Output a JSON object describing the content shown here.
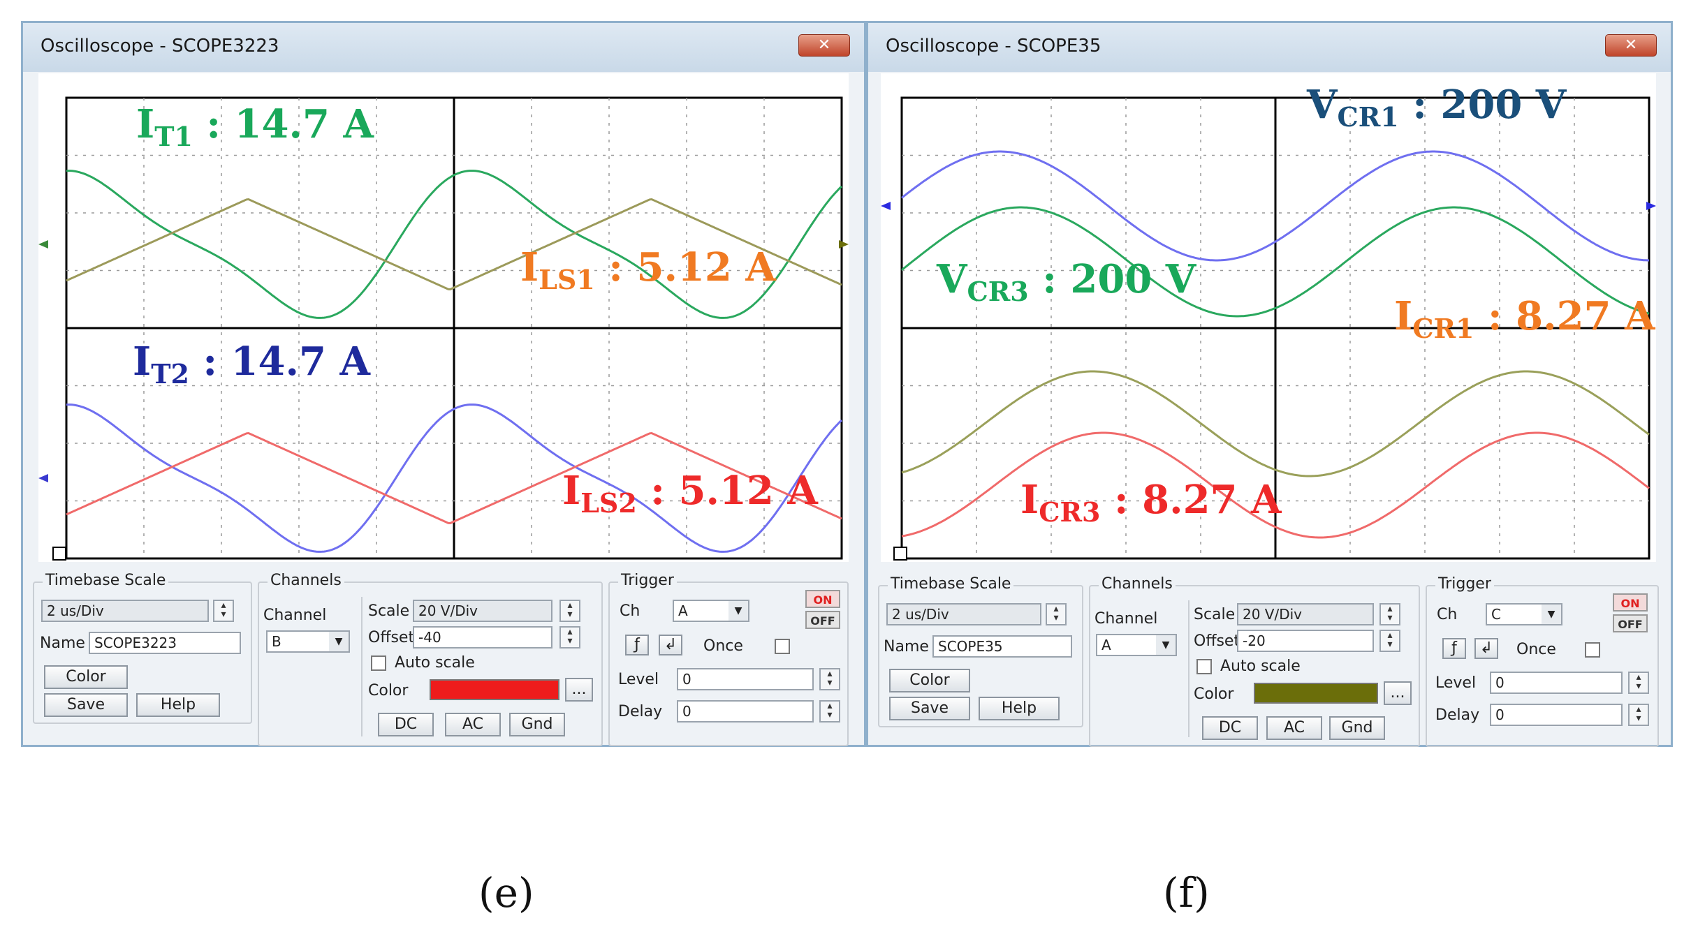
{
  "scopes": [
    {
      "title": "Oscilloscope - SCOPE3223",
      "close": "✕",
      "labels": [
        {
          "main": "I",
          "sub": "T1",
          "rest": " : 14.7 A",
          "color": "#19a85a"
        },
        {
          "main": "I",
          "sub": "LS1",
          "rest": " : 5.12 A",
          "color": "#f07a22"
        },
        {
          "main": "I",
          "sub": "T2",
          "rest": " : 14.7 A",
          "color": "#1e2a9c"
        },
        {
          "main": "I",
          "sub": "LS2",
          "rest": " : 5.12 A",
          "color": "#ee2a2a"
        }
      ],
      "timebase": {
        "title": "Timebase Scale",
        "value": "2 us/Div",
        "name_label": "Name",
        "name_value": "SCOPE3223",
        "color_btn": "Color",
        "save_btn": "Save",
        "help_btn": "Help"
      },
      "channels": {
        "title": "Channels",
        "channel_label": "Channel",
        "channel_value": "B",
        "scale_label": "Scale",
        "scale_value": "20  V/Div",
        "offset_label": "Offset",
        "offset_value": "-40",
        "autoscale_label": "Auto scale",
        "color_label": "Color",
        "color_value": "#ee1c1c",
        "more_btn": "...",
        "dc": "DC",
        "ac": "AC",
        "gnd": "Gnd"
      },
      "trigger": {
        "title": "Trigger",
        "ch_label": "Ch",
        "ch_value": "A",
        "once_label": "Once",
        "level_label": "Level",
        "level_value": "0",
        "delay_label": "Delay",
        "delay_value": "0",
        "on": "ON",
        "off": "OFF",
        "rise": "ƒ",
        "fall": "↲"
      }
    },
    {
      "title": "Oscilloscope - SCOPE35",
      "close": "✕",
      "labels": [
        {
          "main": "V",
          "sub": "CR1",
          "rest": " : 200 V",
          "color": "#1a4f7a"
        },
        {
          "main": "V",
          "sub": "CR3",
          "rest": " : 200 V",
          "color": "#19a85a"
        },
        {
          "main": "I",
          "sub": "CR1",
          "rest": " : 8.27 A",
          "color": "#f07a22"
        },
        {
          "main": "I",
          "sub": "CR3",
          "rest": " : 8.27 A",
          "color": "#ee2a2a"
        }
      ],
      "timebase": {
        "title": "Timebase Scale",
        "value": "2 us/Div",
        "name_label": "Name",
        "name_value": "SCOPE35",
        "color_btn": "Color",
        "save_btn": "Save",
        "help_btn": "Help"
      },
      "channels": {
        "title": "Channels",
        "channel_label": "Channel",
        "channel_value": "A",
        "scale_label": "Scale",
        "scale_value": "20  V/Div",
        "offset_label": "Offset",
        "offset_value": "-20",
        "autoscale_label": "Auto scale",
        "color_label": "Color",
        "color_value": "#6b6e0a",
        "more_btn": "...",
        "dc": "DC",
        "ac": "AC",
        "gnd": "Gnd"
      },
      "trigger": {
        "title": "Trigger",
        "ch_label": "Ch",
        "ch_value": "C",
        "once_label": "Once",
        "level_label": "Level",
        "level_value": "0",
        "delay_label": "Delay",
        "delay_value": "0",
        "on": "ON",
        "off": "OFF",
        "rise": "ƒ",
        "fall": "↲"
      }
    }
  ],
  "captions": [
    "(e)",
    "(f)"
  ],
  "colors": {
    "window_border": "#8fb0cc",
    "panel_bg": "#eef2f6",
    "trace_green": "#2aa85e",
    "trace_olive": "#9c9a5a",
    "trace_blue": "#6f6ff0",
    "trace_red": "#f06a6a",
    "trace_olive2": "#9aa05a"
  }
}
